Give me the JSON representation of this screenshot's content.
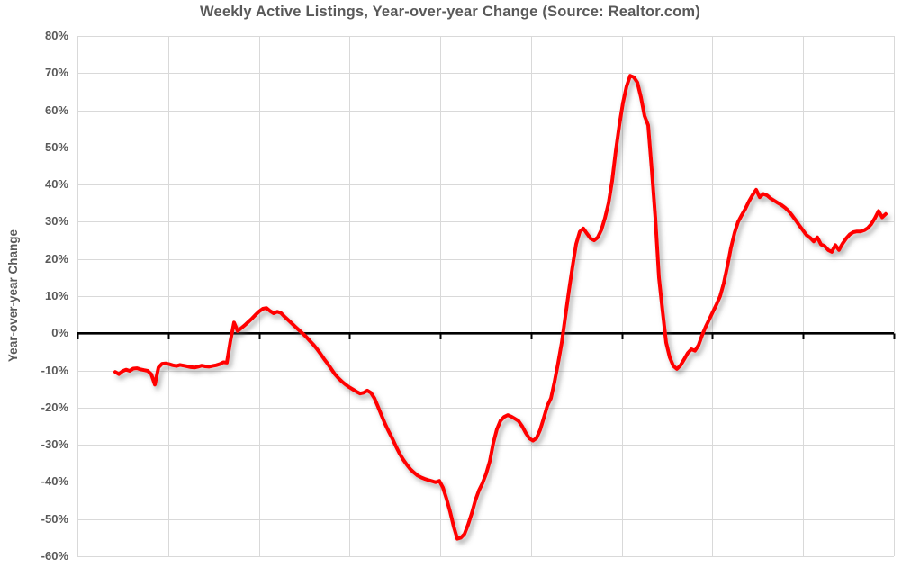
{
  "chart_data": {
    "type": "line",
    "title": "Weekly Active Listings, Year-over-year Change (Source: Realtor.com)",
    "ylabel": "Year-over-year Change",
    "xlabel": "",
    "ylim": [
      -60,
      80
    ],
    "ytick_step": 10,
    "ytick_labels": [
      "80%",
      "70%",
      "60%",
      "50%",
      "40%",
      "30%",
      "20%",
      "10%",
      "0%",
      "-10%",
      "-20%",
      "-30%",
      "-40%",
      "-50%",
      "-60%"
    ],
    "grid": true,
    "legend": false,
    "x_axis_labels_visible": false,
    "n_vertical_gridline_intervals": 9,
    "zero_axis": true,
    "series": [
      {
        "name": "Weekly Active Listings YoY Change",
        "unit": "%",
        "x_start_frac": 0.0463,
        "x_end_frac": 0.9901,
        "values": [
          -10.4,
          -11.0,
          -10.2,
          -9.8,
          -10.1,
          -9.5,
          -9.4,
          -9.7,
          -9.9,
          -10.1,
          -11.0,
          -13.8,
          -9.2,
          -8.2,
          -8.1,
          -8.3,
          -8.6,
          -8.8,
          -8.5,
          -8.7,
          -8.9,
          -9.1,
          -9.2,
          -9.0,
          -8.7,
          -8.9,
          -9.0,
          -8.8,
          -8.6,
          -8.3,
          -7.8,
          -7.9,
          -2.0,
          2.9,
          0.6,
          1.4,
          2.2,
          3.1,
          4.0,
          5.0,
          5.9,
          6.6,
          6.8,
          6.0,
          5.4,
          5.8,
          5.5,
          4.5,
          3.6,
          2.7,
          1.8,
          0.9,
          0.0,
          -0.9,
          -2.0,
          -3.0,
          -4.2,
          -5.5,
          -6.9,
          -8.2,
          -9.6,
          -11.0,
          -12.1,
          -13.0,
          -13.8,
          -14.5,
          -15.1,
          -15.7,
          -16.2,
          -16.0,
          -15.4,
          -16.0,
          -17.5,
          -19.8,
          -22.2,
          -24.5,
          -26.5,
          -28.4,
          -30.5,
          -32.4,
          -34.0,
          -35.4,
          -36.6,
          -37.5,
          -38.3,
          -38.8,
          -39.2,
          -39.5,
          -39.8,
          -40.1,
          -39.7,
          -41.5,
          -44.5,
          -48.0,
          -52.0,
          -55.3,
          -55.0,
          -54.0,
          -51.5,
          -48.5,
          -45.0,
          -42.3,
          -40.3,
          -37.8,
          -34.5,
          -29.5,
          -25.8,
          -23.5,
          -22.5,
          -22.0,
          -22.4,
          -23.0,
          -23.6,
          -25.0,
          -26.8,
          -28.3,
          -28.9,
          -28.2,
          -26.0,
          -22.8,
          -19.5,
          -17.5,
          -13.0,
          -8.0,
          -2.5,
          4.5,
          11.5,
          18.0,
          24.0,
          27.3,
          28.2,
          26.8,
          25.5,
          25.0,
          25.8,
          27.8,
          31.0,
          35.0,
          41.0,
          49.0,
          56.0,
          62.0,
          66.4,
          69.3,
          68.9,
          67.5,
          63.5,
          58.5,
          56.0,
          44.0,
          31.0,
          15.0,
          6.0,
          -2.5,
          -6.5,
          -8.8,
          -9.6,
          -8.6,
          -7.0,
          -5.3,
          -4.3,
          -4.7,
          -3.2,
          -0.5,
          1.8,
          3.8,
          5.8,
          7.8,
          10.0,
          13.5,
          18.0,
          23.0,
          27.0,
          30.0,
          31.8,
          33.5,
          35.5,
          37.2,
          38.6,
          36.6,
          37.5,
          37.1,
          36.3,
          35.7,
          35.1,
          34.5,
          33.8,
          32.9,
          31.7,
          30.4,
          29.0,
          27.7,
          26.4,
          25.7,
          24.7,
          25.8,
          23.9,
          23.5,
          22.4,
          21.9,
          23.7,
          22.4,
          24.1,
          25.5,
          26.6,
          27.2,
          27.4,
          27.4,
          27.7,
          28.3,
          29.4,
          31.0,
          32.9,
          31.2,
          32.1
        ]
      }
    ],
    "colors": {
      "line": "#FF0000",
      "grid": "#D9D9D9",
      "zero_axis": "#000000",
      "text": "#595959",
      "background": "#FFFFFF"
    }
  }
}
